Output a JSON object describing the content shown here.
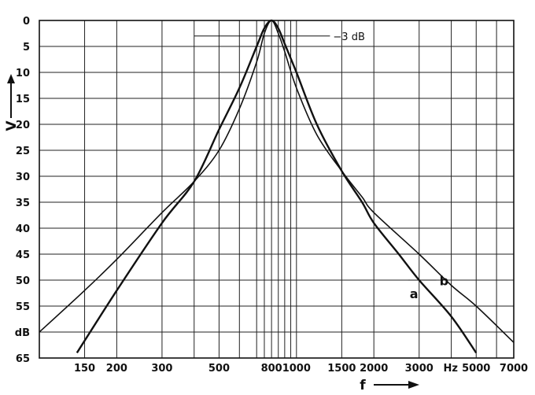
{
  "chart_data": {
    "type": "line",
    "title": "",
    "xlabel": "f",
    "ylabel": "V",
    "x_scale": "log",
    "xlim": [
      100,
      7000
    ],
    "ylim": [
      0,
      65
    ],
    "y_unit": "dB",
    "x_unit": "Hz",
    "y_ticks": [
      "0",
      "5",
      "10",
      "15",
      "20",
      "25",
      "30",
      "35",
      "40",
      "45",
      "50",
      "55",
      "60",
      "65"
    ],
    "y_tick_labels": [
      "0",
      "5",
      "10",
      "15",
      "20",
      "25",
      "30",
      "35",
      "40",
      "45",
      "50",
      "55",
      "dB",
      "65"
    ],
    "x_ticks": [
      150,
      200,
      300,
      500,
      800,
      1000,
      1500,
      2000,
      3000,
      5000,
      7000
    ],
    "x_tick_labels": [
      "150",
      "200",
      "300",
      "500",
      "800",
      "1000",
      "1500",
      "2000",
      "3000",
      "5000",
      "7000"
    ],
    "x_unit_label": "Hz",
    "x_vertical_gridlines": [
      100,
      150,
      200,
      300,
      400,
      500,
      600,
      700,
      750,
      800,
      850,
      900,
      950,
      1000,
      1500,
      2000,
      3000,
      4000,
      5000,
      6000,
      7000
    ],
    "grid": true,
    "annotations": [
      {
        "text": "−3 dB",
        "x": 820,
        "y": 3
      }
    ],
    "series": [
      {
        "name": "a",
        "x": [
          140,
          200,
          300,
          400,
          500,
          600,
          700,
          750,
          800,
          850,
          900,
          1000,
          1200,
          1500,
          1800,
          2000,
          2500,
          3000,
          4000,
          5000
        ],
        "y": [
          64,
          52,
          39,
          31,
          21,
          13,
          5,
          1.5,
          0,
          1.5,
          4.5,
          10,
          20,
          29,
          35,
          39,
          45,
          50,
          57,
          64
        ]
      },
      {
        "name": "b",
        "x": [
          100,
          150,
          200,
          300,
          400,
          500,
          600,
          700,
          750,
          800,
          850,
          900,
          1000,
          1200,
          1500,
          1800,
          2000,
          3000,
          4000,
          5000,
          7000
        ],
        "y": [
          60,
          52,
          46,
          37,
          31,
          25,
          17,
          8,
          2.5,
          0,
          2.5,
          6,
          13,
          22,
          29,
          34,
          37,
          45,
          51,
          55,
          62
        ]
      }
    ],
    "series_labels": [
      "a",
      "b"
    ]
  }
}
